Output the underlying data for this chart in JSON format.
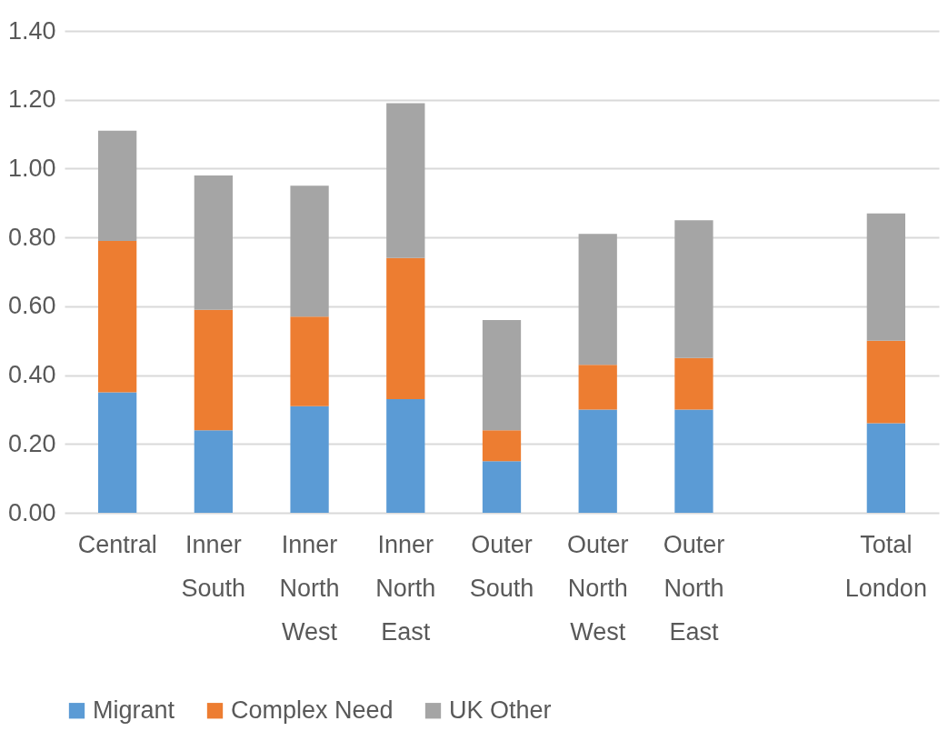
{
  "chart_data": {
    "type": "bar",
    "stacked": true,
    "categories": [
      "Central",
      "Inner South",
      "Inner North West",
      "Inner North East",
      "Outer South",
      "Outer North West",
      "Outer North East",
      null,
      "Total London"
    ],
    "series": [
      {
        "name": "Migrant",
        "color": "#5b9bd5",
        "values": [
          0.35,
          0.24,
          0.31,
          0.33,
          0.15,
          0.3,
          0.3,
          null,
          0.26
        ]
      },
      {
        "name": "Complex Need",
        "color": "#ed7d31",
        "values": [
          0.44,
          0.35,
          0.26,
          0.41,
          0.09,
          0.13,
          0.15,
          null,
          0.24
        ]
      },
      {
        "name": "UK Other",
        "color": "#a5a5a5",
        "values": [
          0.32,
          0.39,
          0.38,
          0.45,
          0.32,
          0.38,
          0.4,
          null,
          0.37
        ]
      }
    ],
    "ylim": [
      0,
      1.4
    ],
    "yticks": [
      {
        "value": 0,
        "label": "0.00"
      },
      {
        "value": 0.2,
        "label": "0.20"
      },
      {
        "value": 0.4,
        "label": "0.40"
      },
      {
        "value": 0.6,
        "label": "0.60"
      },
      {
        "value": 0.8,
        "label": "0.80"
      },
      {
        "value": 1,
        "label": "1.00"
      },
      {
        "value": 1.2,
        "label": "1.20"
      },
      {
        "value": 1.4,
        "label": "1.40"
      }
    ],
    "grid": "y",
    "legend": "bottom"
  }
}
